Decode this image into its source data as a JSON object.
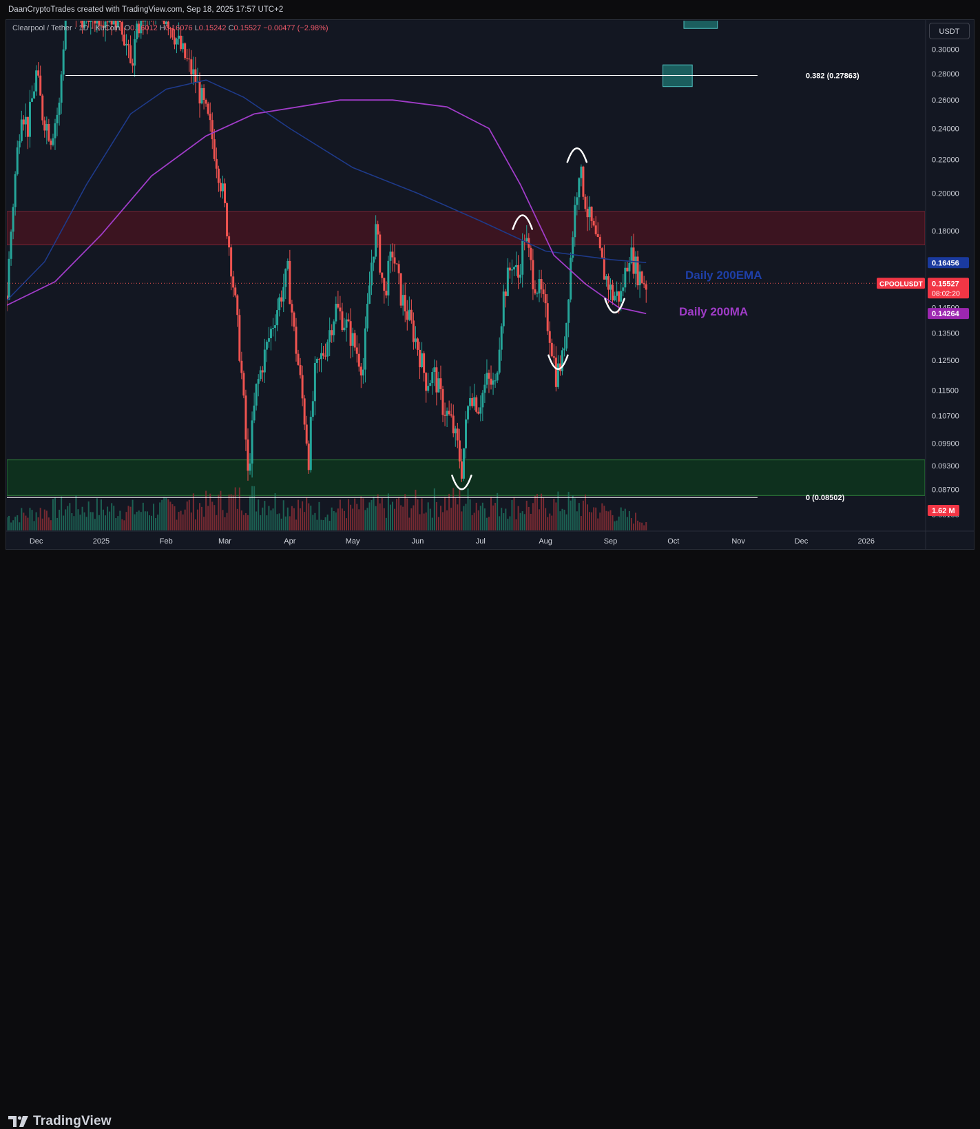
{
  "credit": "DaanCryptoTrades created with TradingView.com, Sep 18, 2025 17:57 UTC+2",
  "legend": {
    "symbol": "Clearpool / Tether · 1D · KuCoin",
    "open_label": "O",
    "open": "0.16012",
    "high_label": "H",
    "high": "0.16076",
    "low_label": "L",
    "low": "0.15242",
    "close_label": "C",
    "close": "0.15527",
    "change": "−0.00477 (−2.98%)"
  },
  "currency_button": "USDT",
  "brand": "TradingView",
  "colors": {
    "bull": "#26a69a",
    "bear": "#ef5350",
    "ema": "#1e3a8a",
    "ma": "#a03cc8",
    "resistance_zone": "#4a1420",
    "support_zone": "#0e3a1e",
    "fib_box": "#1b5e5e",
    "annotation": "#ffffff"
  },
  "chart_data": {
    "type": "candlestick",
    "symbol": "CPOOLUSDT",
    "timeframe": "1D",
    "exchange": "KuCoin",
    "y_axis": {
      "scale": "log",
      "range": [
        0.0775,
        0.325
      ],
      "ticks": [
        "0.30000",
        "0.28000",
        "0.26000",
        "0.24000",
        "0.22000",
        "0.20000",
        "0.18000",
        "0.14500",
        "0.13500",
        "0.12500",
        "0.11500",
        "0.10700",
        "0.09900",
        "0.09300",
        "0.08700",
        "0.08100"
      ]
    },
    "x_axis": {
      "range": [
        "2024-11-17",
        "2026-01-29"
      ],
      "ticks": [
        {
          "label": "Dec",
          "date": "2024-12-01"
        },
        {
          "label": "2025",
          "date": "2025-01-01"
        },
        {
          "label": "Feb",
          "date": "2025-02-01"
        },
        {
          "label": "Mar",
          "date": "2025-03-01"
        },
        {
          "label": "Apr",
          "date": "2025-04-01"
        },
        {
          "label": "May",
          "date": "2025-05-01"
        },
        {
          "label": "Jun",
          "date": "2025-06-01"
        },
        {
          "label": "Jul",
          "date": "2025-07-01"
        },
        {
          "label": "Aug",
          "date": "2025-08-01"
        },
        {
          "label": "Sep",
          "date": "2025-09-01"
        },
        {
          "label": "Oct",
          "date": "2025-10-01"
        },
        {
          "label": "Nov",
          "date": "2025-11-01"
        },
        {
          "label": "Dec",
          "date": "2025-12-01"
        },
        {
          "label": "2026",
          "date": "2026-01-01"
        }
      ]
    },
    "price_path": [
      [
        "2024-11-17",
        0.15
      ],
      [
        "2024-11-20",
        0.195
      ],
      [
        "2024-11-24",
        0.255
      ],
      [
        "2024-11-27",
        0.24
      ],
      [
        "2024-12-01",
        0.28
      ],
      [
        "2024-12-04",
        0.25
      ],
      [
        "2024-12-08",
        0.235
      ],
      [
        "2024-12-12",
        0.255
      ],
      [
        "2024-12-15",
        0.33
      ],
      [
        "2025-01-10",
        0.33
      ],
      [
        "2025-01-15",
        0.285
      ],
      [
        "2025-01-20",
        0.33
      ],
      [
        "2025-02-01",
        0.33
      ],
      [
        "2025-02-08",
        0.3
      ],
      [
        "2025-02-15",
        0.275
      ],
      [
        "2025-02-22",
        0.24
      ],
      [
        "2025-02-28",
        0.2
      ],
      [
        "2025-03-05",
        0.155
      ],
      [
        "2025-03-09",
        0.12
      ],
      [
        "2025-03-12",
        0.09
      ],
      [
        "2025-03-16",
        0.115
      ],
      [
        "2025-03-21",
        0.13
      ],
      [
        "2025-03-26",
        0.145
      ],
      [
        "2025-03-31",
        0.16
      ],
      [
        "2025-04-03",
        0.135
      ],
      [
        "2025-04-07",
        0.112
      ],
      [
        "2025-04-10",
        0.095
      ],
      [
        "2025-04-13",
        0.12
      ],
      [
        "2025-04-18",
        0.13
      ],
      [
        "2025-04-23",
        0.145
      ],
      [
        "2025-04-28",
        0.138
      ],
      [
        "2025-05-02",
        0.13
      ],
      [
        "2025-05-06",
        0.122
      ],
      [
        "2025-05-10",
        0.165
      ],
      [
        "2025-05-12",
        0.18
      ],
      [
        "2025-05-16",
        0.15
      ],
      [
        "2025-05-20",
        0.17
      ],
      [
        "2025-05-24",
        0.15
      ],
      [
        "2025-05-28",
        0.14
      ],
      [
        "2025-06-01",
        0.13
      ],
      [
        "2025-06-05",
        0.118
      ],
      [
        "2025-06-09",
        0.12
      ],
      [
        "2025-06-13",
        0.11
      ],
      [
        "2025-06-17",
        0.105
      ],
      [
        "2025-06-20",
        0.098
      ],
      [
        "2025-06-22",
        0.092
      ],
      [
        "2025-06-26",
        0.115
      ],
      [
        "2025-06-30",
        0.11
      ],
      [
        "2025-07-04",
        0.118
      ],
      [
        "2025-07-08",
        0.116
      ],
      [
        "2025-07-12",
        0.15
      ],
      [
        "2025-07-16",
        0.165
      ],
      [
        "2025-07-19",
        0.158
      ],
      [
        "2025-07-22",
        0.178
      ],
      [
        "2025-07-26",
        0.158
      ],
      [
        "2025-07-30",
        0.15
      ],
      [
        "2025-08-03",
        0.135
      ],
      [
        "2025-08-06",
        0.12
      ],
      [
        "2025-08-09",
        0.125
      ],
      [
        "2025-08-11",
        0.14
      ],
      [
        "2025-08-14",
        0.18
      ],
      [
        "2025-08-17",
        0.215
      ],
      [
        "2025-08-21",
        0.19
      ],
      [
        "2025-08-25",
        0.175
      ],
      [
        "2025-08-29",
        0.16
      ],
      [
        "2025-09-02",
        0.15
      ],
      [
        "2025-09-06",
        0.15
      ],
      [
        "2025-09-10",
        0.17
      ],
      [
        "2025-09-14",
        0.16
      ],
      [
        "2025-09-18",
        0.155
      ]
    ],
    "volume_path": [
      [
        "2024-11-17",
        0.4
      ],
      [
        "2024-12-15",
        0.7
      ],
      [
        "2025-01-20",
        0.6
      ],
      [
        "2025-02-25",
        0.8
      ],
      [
        "2025-03-12",
        1.0
      ],
      [
        "2025-04-15",
        0.6
      ],
      [
        "2025-05-12",
        0.7
      ],
      [
        "2025-06-22",
        0.9
      ],
      [
        "2025-07-20",
        0.7
      ],
      [
        "2025-08-14",
        0.8
      ],
      [
        "2025-09-18",
        0.3
      ]
    ],
    "ema200": {
      "label": "Daily 200EMA",
      "value": "0.16456",
      "path": [
        [
          "2024-11-17",
          0.148
        ],
        [
          "2024-12-05",
          0.165
        ],
        [
          "2024-12-25",
          0.205
        ],
        [
          "2025-01-15",
          0.25
        ],
        [
          "2025-02-01",
          0.268
        ],
        [
          "2025-02-20",
          0.275
        ],
        [
          "2025-03-10",
          0.262
        ],
        [
          "2025-04-01",
          0.24
        ],
        [
          "2025-05-01",
          0.215
        ],
        [
          "2025-06-01",
          0.2
        ],
        [
          "2025-07-01",
          0.185
        ],
        [
          "2025-08-01",
          0.17
        ],
        [
          "2025-09-01",
          0.166
        ],
        [
          "2025-09-18",
          0.1646
        ]
      ]
    },
    "ma200": {
      "label": "Daily 200MA",
      "value": "0.14264",
      "path": [
        [
          "2024-11-17",
          0.146
        ],
        [
          "2024-12-10",
          0.156
        ],
        [
          "2025-01-01",
          0.178
        ],
        [
          "2025-01-25",
          0.21
        ],
        [
          "2025-02-20",
          0.235
        ],
        [
          "2025-03-15",
          0.25
        ],
        [
          "2025-04-05",
          0.255
        ],
        [
          "2025-04-25",
          0.26
        ],
        [
          "2025-05-20",
          0.26
        ],
        [
          "2025-06-15",
          0.255
        ],
        [
          "2025-07-05",
          0.24
        ],
        [
          "2025-07-20",
          0.205
        ],
        [
          "2025-08-05",
          0.168
        ],
        [
          "2025-08-20",
          0.155
        ],
        [
          "2025-09-05",
          0.145
        ],
        [
          "2025-09-18",
          0.1426
        ]
      ]
    },
    "fib_levels": [
      {
        "label": "0.382 (0.27863)",
        "price": 0.27863,
        "start": "2024-12-15",
        "end": "2025-10-28"
      },
      {
        "label": "0 (0.08502)",
        "price": 0.08502,
        "start": "2024-11-17",
        "end": "2025-10-28"
      }
    ],
    "zones": [
      {
        "name": "resistance",
        "top": 0.19,
        "bottom": 0.173
      },
      {
        "name": "support",
        "top": 0.0945,
        "bottom": 0.0855
      }
    ],
    "fib_boxes": [
      {
        "name": "fib-target",
        "start": "2025-09-26",
        "end": "2025-10-10",
        "top": 0.287,
        "bottom": 0.27
      },
      {
        "name": "fib-target-upper",
        "start": "2025-10-06",
        "end": "2025-10-22",
        "top": 0.33,
        "bottom": 0.318
      }
    ],
    "annotation_arcs": [
      {
        "shape": "cup",
        "date": "2025-06-22",
        "price": 0.087
      },
      {
        "shape": "cap",
        "date": "2025-07-21",
        "price": 0.188
      },
      {
        "shape": "cup",
        "date": "2025-08-07",
        "price": 0.122
      },
      {
        "shape": "cap",
        "date": "2025-08-16",
        "price": 0.227
      },
      {
        "shape": "cup",
        "date": "2025-09-03",
        "price": 0.143
      }
    ],
    "price_badges": [
      {
        "name": "ema",
        "text": "0.16456",
        "price": 0.16456
      },
      {
        "name": "last",
        "text": "0.15527",
        "price": 0.15527
      },
      {
        "name": "countdown",
        "text": "08:02:20"
      },
      {
        "name": "ma",
        "text": "0.14264",
        "price": 0.14264
      },
      {
        "name": "volume",
        "text": "1.62 M"
      }
    ],
    "symbol_badge": "CPOOLUSDT",
    "last_price": 0.15527
  }
}
